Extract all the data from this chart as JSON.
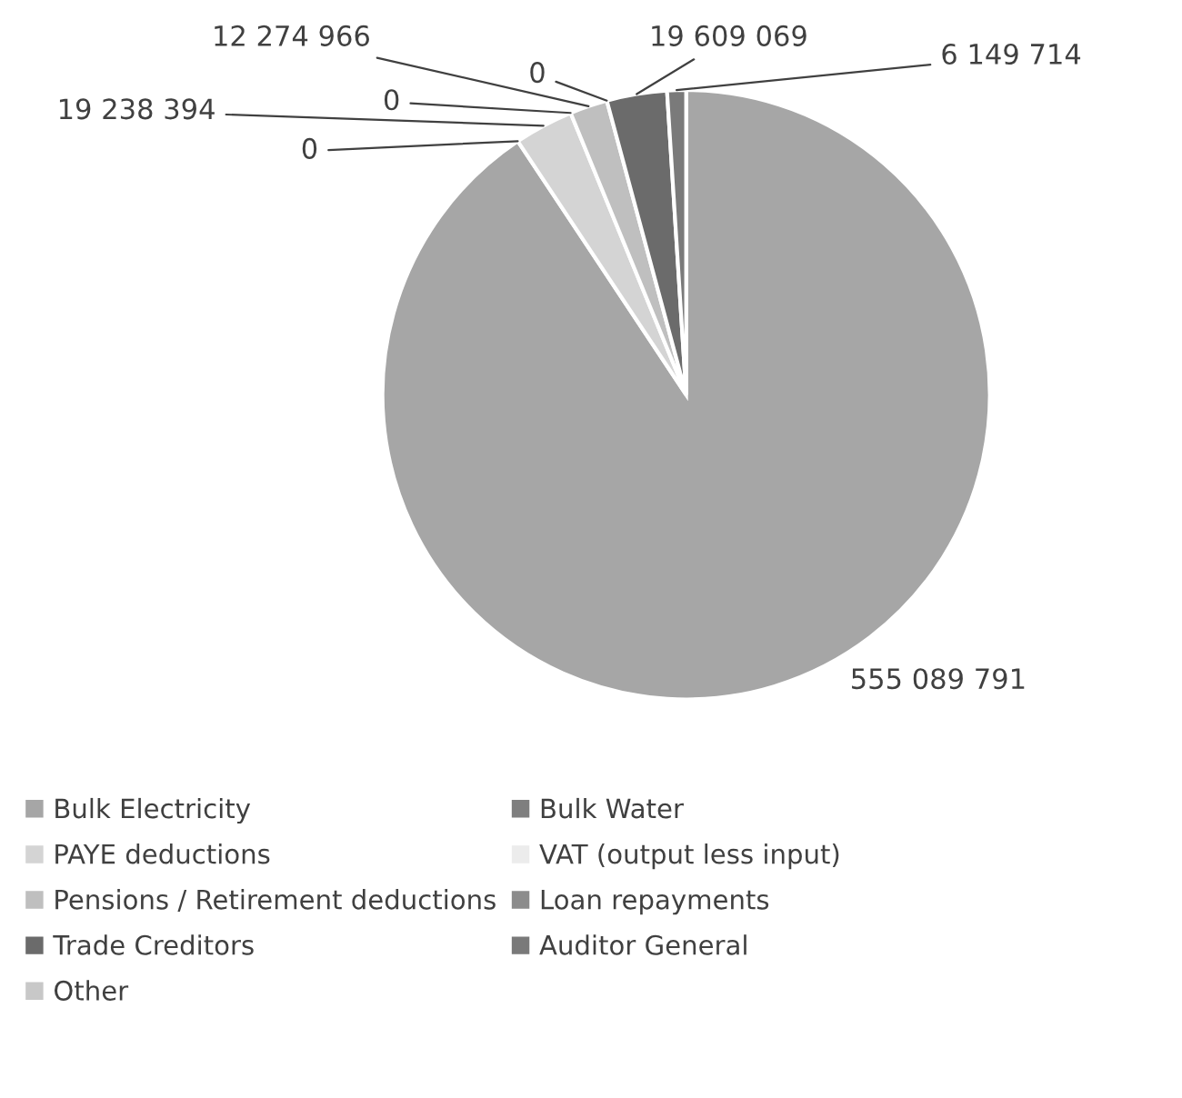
{
  "chart_data": {
    "type": "pie",
    "categories": [
      "Bulk Electricity",
      "Bulk Water",
      "PAYE deductions",
      "VAT (output less input)",
      "Pensions / Retirement deductions",
      "Loan repayments",
      "Trade Creditors",
      "Auditor General",
      "Other"
    ],
    "values": [
      555089791,
      0,
      19238394,
      0,
      12274966,
      0,
      19609069,
      6149714,
      0
    ],
    "colors": [
      "#a6a6a6",
      "#7f7f7f",
      "#d4d4d4",
      "#ececec",
      "#bfbfbf",
      "#8c8c8c",
      "#6b6b6b",
      "#7a7a7a",
      "#c8c8c8"
    ],
    "value_labels": [
      "555 089 791",
      "0",
      "19 238 394",
      "0",
      "12 274 966",
      "0",
      "19 609 069",
      "6 149 714",
      null
    ],
    "legend": "bottom"
  }
}
